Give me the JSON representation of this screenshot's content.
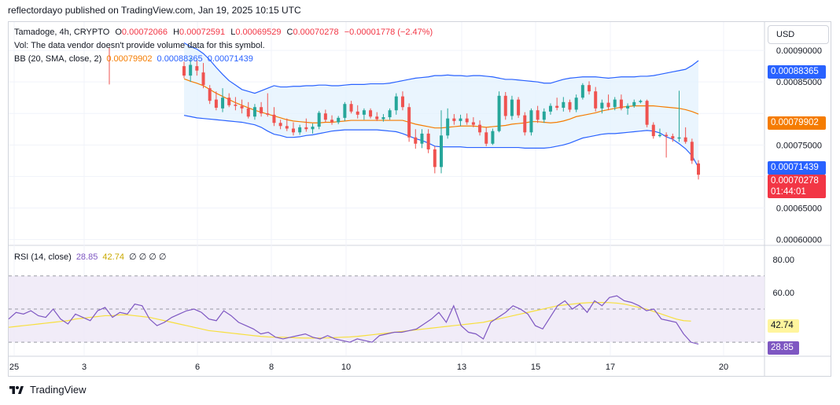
{
  "header": {
    "published_text": "reflectordayo published on TradingView.com, Jan 19, 2025 10:15 UTC"
  },
  "currency_button": "USD",
  "legend": {
    "symbol": "Tamadoge, 4h, CRYPTO",
    "o_label": "O",
    "o": "0.00072066",
    "h_label": "H",
    "h": "0.00072591",
    "l_label": "L",
    "l": "0.00069529",
    "c_label": "C",
    "c": "0.00070278",
    "change": "−0.00001778 (−2.47%)",
    "vol_text": "Vol: The data vendor doesn't provide volume data for this symbol.",
    "bb_label": "BB (20, SMA, close, 2)",
    "bb_basis": "0.00079902",
    "bb_upper": "0.00088365",
    "bb_lower": "0.00071439",
    "rsi_label": "RSI (14, close)",
    "rsi_value": "28.85",
    "rsi_ma": "42.74",
    "rsi_extra": "∅ ∅ ∅ ∅"
  },
  "price_tags": {
    "upper": "0.00088365",
    "basis": "0.00079902",
    "lower": "0.00071439",
    "last": "0.00070278",
    "countdown": "01:44:01"
  },
  "rsi_tags": {
    "ma": "42.74",
    "rsi": "28.85"
  },
  "footer": {
    "brand": "TradingView"
  },
  "colors": {
    "up": "#26a69a",
    "down": "#ef5350",
    "bb_band": "#2962ff",
    "bb_basis": "#f57c00",
    "bb_fill": "#e3f2fd",
    "rsi_line": "#7e57c2",
    "rsi_ma": "#f7df3c",
    "rsi_bg": "#ede7f6"
  },
  "chart_data": [
    {
      "type": "candlestick",
      "title": "Tamadoge, 4h, CRYPTO",
      "y_ticks": [
        "0.00090000",
        "0.00085000",
        "0.00075000",
        "0.00065000",
        "0.00060000"
      ],
      "x_ticks": [
        "25",
        "3",
        "6",
        "8",
        "10",
        "13",
        "15",
        "17",
        "20"
      ],
      "ylim": [
        0.000592,
        0.000945
      ],
      "candles": [
        [
          0.000875,
          0.000882,
          0.000856,
          0.00086
        ],
        [
          0.00086,
          0.000888,
          0.00085,
          0.000877
        ],
        [
          0.000875,
          0.000885,
          0.00086,
          0.000868
        ],
        [
          0.000865,
          0.00088,
          0.00084,
          0.000845
        ],
        [
          0.00084,
          0.000845,
          0.000815,
          0.00082
        ],
        [
          0.000822,
          0.000835,
          0.000805,
          0.000809
        ],
        [
          0.000808,
          0.00084,
          0.000802,
          0.000825
        ],
        [
          0.000825,
          0.000832,
          0.00081,
          0.000813
        ],
        [
          0.000814,
          0.000826,
          0.000805,
          0.000812
        ],
        [
          0.000812,
          0.000822,
          0.0008,
          0.000808
        ],
        [
          0.000808,
          0.000818,
          0.000792,
          0.000795
        ],
        [
          0.000795,
          0.000815,
          0.00079,
          0.00081
        ],
        [
          0.00081,
          0.000818,
          0.000795,
          0.0008
        ],
        [
          0.0008,
          0.000832,
          0.000795,
          0.000798
        ],
        [
          0.000798,
          0.00081,
          0.00078,
          0.000785
        ],
        [
          0.000785,
          0.00079,
          0.000775,
          0.00078
        ],
        [
          0.00078,
          0.000792,
          0.000772,
          0.000776
        ],
        [
          0.000776,
          0.000786,
          0.000765,
          0.00077
        ],
        [
          0.00077,
          0.000782,
          0.000766,
          0.000778
        ],
        [
          0.000778,
          0.000792,
          0.000771,
          0.000775
        ],
        [
          0.000775,
          0.000784,
          0.000768,
          0.000779
        ],
        [
          0.000779,
          0.000804,
          0.000775,
          0.000801
        ],
        [
          0.0008,
          0.000806,
          0.000786,
          0.00079
        ],
        [
          0.00079,
          0.000797,
          0.000782,
          0.000786
        ],
        [
          0.000786,
          0.000796,
          0.000783,
          0.000793
        ],
        [
          0.000793,
          0.000818,
          0.000788,
          0.000815
        ],
        [
          0.000815,
          0.00082,
          0.0008,
          0.000803
        ],
        [
          0.000803,
          0.000813,
          0.000792,
          0.000798
        ],
        [
          0.000798,
          0.000808,
          0.00079,
          0.000805
        ],
        [
          0.000805,
          0.000808,
          0.000792,
          0.000795
        ],
        [
          0.000795,
          0.000802,
          0.000788,
          0.000791
        ],
        [
          0.000791,
          0.000799,
          0.000787,
          0.000794
        ],
        [
          0.000794,
          0.000808,
          0.00079,
          0.000805
        ],
        [
          0.000805,
          0.000832,
          0.000798,
          0.000827
        ],
        [
          0.000827,
          0.000835,
          0.000805,
          0.00081
        ],
        [
          0.00081,
          0.000816,
          0.000755,
          0.000762
        ],
        [
          0.000762,
          0.000775,
          0.000744,
          0.000752
        ],
        [
          0.000752,
          0.000775,
          0.000745,
          0.000768
        ],
        [
          0.000768,
          0.000775,
          0.000737,
          0.000743
        ],
        [
          0.000743,
          0.000748,
          0.000705,
          0.000715
        ],
        [
          0.000715,
          0.000805,
          0.000705,
          0.000765
        ],
        [
          0.000765,
          0.000808,
          0.00076,
          0.000792
        ],
        [
          0.000792,
          0.000799,
          0.000782,
          0.000788
        ],
        [
          0.000788,
          0.000798,
          0.00078,
          0.000792
        ],
        [
          0.000792,
          0.0008,
          0.000782,
          0.000786
        ],
        [
          0.000786,
          0.000794,
          0.000778,
          0.000782
        ],
        [
          0.000782,
          0.000789,
          0.000765,
          0.00077
        ],
        [
          0.00077,
          0.000778,
          0.000748,
          0.000752
        ],
        [
          0.000752,
          0.000776,
          0.00075,
          0.000772
        ],
        [
          0.000772,
          0.000835,
          0.00077,
          0.000828
        ],
        [
          0.000828,
          0.000834,
          0.00079,
          0.000796
        ],
        [
          0.000796,
          0.000828,
          0.00079,
          0.000822
        ],
        [
          0.000822,
          0.000826,
          0.000793,
          0.000797
        ],
        [
          0.000797,
          0.000802,
          0.000765,
          0.00077
        ],
        [
          0.00077,
          0.000808,
          0.000765,
          0.000805
        ],
        [
          0.000805,
          0.000812,
          0.000785,
          0.00079
        ],
        [
          0.00079,
          0.000808,
          0.000785,
          0.000803
        ],
        [
          0.000803,
          0.000816,
          0.000798,
          0.000812
        ],
        [
          0.000812,
          0.000825,
          0.000805,
          0.000809
        ],
        [
          0.000809,
          0.000826,
          0.000803,
          0.000818
        ],
        [
          0.000818,
          0.000822,
          0.000802,
          0.000806
        ],
        [
          0.000806,
          0.00083,
          0.000802,
          0.000825
        ],
        [
          0.000825,
          0.000848,
          0.000822,
          0.000845
        ],
        [
          0.000845,
          0.000851,
          0.00083,
          0.000835
        ],
        [
          0.000835,
          0.000842,
          0.000803,
          0.000808
        ],
        [
          0.000808,
          0.000822,
          0.0008,
          0.000817
        ],
        [
          0.000817,
          0.00083,
          0.000805,
          0.00081
        ],
        [
          0.00081,
          0.000826,
          0.000805,
          0.000822
        ],
        [
          0.000822,
          0.00083,
          0.000805,
          0.000808
        ],
        [
          0.000808,
          0.000816,
          0.000798,
          0.000812
        ],
        [
          0.000812,
          0.000822,
          0.000809,
          0.000818
        ],
        [
          0.000818,
          0.000822,
          0.000816,
          0.00082
        ],
        [
          0.00082,
          0.000822,
          0.000778,
          0.000782
        ],
        [
          0.000782,
          0.000786,
          0.00076,
          0.000764
        ],
        [
          0.000764,
          0.000776,
          0.000762,
          0.000766
        ],
        [
          0.000766,
          0.00077,
          0.00073,
          0.000764
        ],
        [
          0.000764,
          0.000768,
          0.000755,
          0.00076
        ],
        [
          0.00076,
          0.000836,
          0.000755,
          0.000762
        ],
        [
          0.000762,
          0.000778,
          0.000752,
          0.000755
        ],
        [
          0.000755,
          0.00076,
          0.00072,
          0.000725
        ],
        [
          0.00072066,
          0.00072591,
          0.00069529,
          0.00070278
        ]
      ],
      "bb_upper": [
        0.000912,
        0.000906,
        0.000902,
        0.000895,
        0.000885,
        0.000873,
        0.000862,
        0.000852,
        0.000845,
        0.000838,
        0.000835,
        0.000832,
        0.000836,
        0.00084,
        0.000844,
        0.000842,
        0.000842,
        0.000843,
        0.000843,
        0.000844,
        0.000844,
        0.000845,
        0.000845,
        0.000844,
        0.000844,
        0.000845,
        0.000846,
        0.000846,
        0.000846,
        0.000847,
        0.000847,
        0.000847,
        0.000848,
        0.00085,
        0.000852,
        0.000854,
        0.000856,
        0.000857,
        0.000858,
        0.00086,
        0.00086,
        0.000861,
        0.00086,
        0.00086,
        0.000859,
        0.00086,
        0.00086,
        0.000859,
        0.000858,
        0.000856,
        0.000854,
        0.000854,
        0.000853,
        0.000852,
        0.000851,
        0.00085,
        0.000848,
        0.000848,
        0.000851,
        0.000854,
        0.000856,
        0.000857,
        0.000858,
        0.000858,
        0.000858,
        0.000857,
        0.000856,
        0.000857,
        0.000858,
        0.000858,
        0.000858,
        0.000859,
        0.000859,
        0.00086,
        0.000862,
        0.000864,
        0.000866,
        0.000868,
        0.00087,
        0.000876,
        0.0008837
      ],
      "bb_basis": [
        0.000855,
        0.000851,
        0.000848,
        0.000844,
        0.000838,
        0.000832,
        0.000827,
        0.000822,
        0.000817,
        0.000813,
        0.000809,
        0.000805,
        0.000802,
        0.000799,
        0.000796,
        0.000793,
        0.00079,
        0.000788,
        0.000787,
        0.000786,
        0.000785,
        0.000785,
        0.000786,
        0.000786,
        0.000787,
        0.000788,
        0.000789,
        0.000789,
        0.000789,
        0.000789,
        0.000789,
        0.000789,
        0.000789,
        0.000789,
        0.000789,
        0.000786,
        0.000783,
        0.000781,
        0.000779,
        0.000777,
        0.000777,
        0.000778,
        0.000779,
        0.00078,
        0.00078,
        0.00078,
        0.000779,
        0.000778,
        0.000779,
        0.00078,
        0.000781,
        0.000783,
        0.000784,
        0.000785,
        0.000787,
        0.000787,
        0.000786,
        0.000785,
        0.000786,
        0.000788,
        0.000791,
        0.000795,
        0.000797,
        0.000799,
        0.000801,
        0.000804,
        0.000806,
        0.000808,
        0.00081,
        0.000811,
        0.000812,
        0.000812,
        0.000812,
        0.000812,
        0.000811,
        0.00081,
        0.000809,
        0.000808,
        0.000806,
        0.000803,
        0.00079902
      ],
      "bb_lower": [
        0.000797,
        0.000795,
        0.000793,
        0.000792,
        0.000791,
        0.00079,
        0.000789,
        0.000788,
        0.000787,
        0.000786,
        0.000784,
        0.000782,
        0.000778,
        0.000772,
        0.000767,
        0.000765,
        0.000762,
        0.000762,
        0.000763,
        0.000765,
        0.000766,
        0.000768,
        0.00077,
        0.000772,
        0.000773,
        0.000774,
        0.000774,
        0.000774,
        0.000774,
        0.000774,
        0.000774,
        0.000773,
        0.000772,
        0.000771,
        0.000768,
        0.000764,
        0.00076,
        0.000757,
        0.000753,
        0.000748,
        0.000747,
        0.000747,
        0.000747,
        0.000747,
        0.000746,
        0.000746,
        0.000746,
        0.000746,
        0.000746,
        0.000746,
        0.000746,
        0.000746,
        0.000746,
        0.000745,
        0.000745,
        0.000745,
        0.000745,
        0.000746,
        0.000748,
        0.00075,
        0.000753,
        0.000757,
        0.000761,
        0.000763,
        0.000765,
        0.000767,
        0.000768,
        0.000768,
        0.000769,
        0.00077,
        0.000771,
        0.000772,
        0.000773,
        0.000772,
        0.000769,
        0.000763,
        0.000759,
        0.000752,
        0.000744,
        0.000733,
        0.0007144
      ]
    },
    {
      "type": "line",
      "title": "RSI (14, close)",
      "y_ticks": [
        "80.00",
        "60.00"
      ],
      "levels": [
        70,
        50,
        30
      ],
      "ylim": [
        22,
        88
      ],
      "rsi": [
        44,
        48,
        47,
        49,
        46,
        45,
        50,
        44,
        41,
        47,
        45,
        43,
        49,
        51,
        45,
        48,
        47,
        53,
        52,
        44,
        40,
        42,
        45,
        47,
        49,
        50,
        48,
        44,
        43,
        49,
        46,
        42,
        40,
        38,
        35,
        36,
        33,
        32,
        33,
        34,
        35,
        33,
        32,
        34,
        32,
        31,
        30,
        32,
        31,
        30,
        34,
        35,
        36,
        36,
        37,
        38,
        41,
        44,
        48,
        42,
        52,
        40,
        36,
        35,
        32,
        42,
        45,
        48,
        52,
        50,
        47,
        40,
        38,
        45,
        52,
        55,
        50,
        53,
        48,
        55,
        52,
        57,
        58,
        55,
        54,
        52,
        49,
        50,
        44,
        43,
        42,
        35,
        30,
        28.85
      ],
      "rsi_ma": [
        39,
        39.5,
        40,
        40.5,
        41,
        41.5,
        42,
        42.5,
        43,
        44,
        44.5,
        45,
        45.5,
        46,
        46,
        46.5,
        46.5,
        46,
        45.5,
        45,
        44,
        43,
        42,
        41,
        40,
        39,
        38,
        37,
        36.5,
        36,
        35.5,
        35,
        34.5,
        34,
        33.5,
        33.2,
        33,
        33,
        32.8,
        32.6,
        32.5,
        32.5,
        32.5,
        32.6,
        32.8,
        33,
        33.2,
        33.5,
        34,
        34.5,
        35,
        35.5,
        36,
        36.5,
        37,
        37.5,
        38,
        38.5,
        39,
        39.5,
        40,
        40.5,
        41,
        41.5,
        42,
        43,
        44,
        45,
        46,
        47,
        48,
        49,
        50,
        51,
        52,
        52.5,
        53,
        53.5,
        53.8,
        54,
        54,
        53.9,
        53.6,
        53,
        52,
        51,
        50,
        48.5,
        47,
        45.5,
        44,
        43,
        42.74
      ]
    }
  ]
}
